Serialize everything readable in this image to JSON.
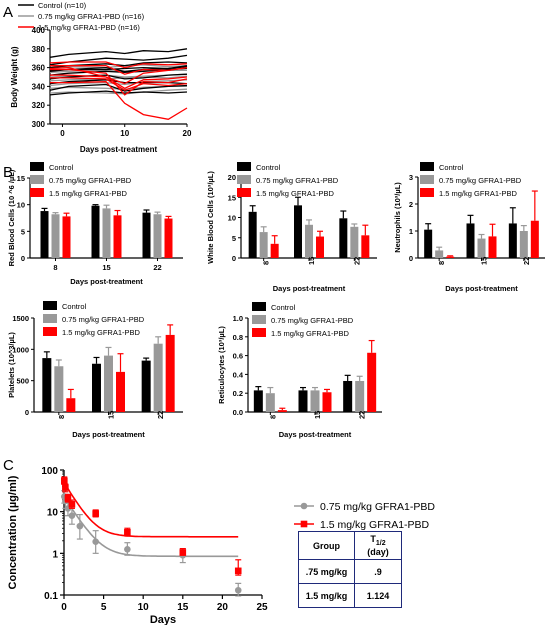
{
  "panel_labels": [
    "A",
    "B",
    "C"
  ],
  "colors": {
    "control": "#000000",
    "low": "#999999",
    "high": "#ff0000",
    "table_border": "#1f2a7a"
  },
  "chart_data": [
    {
      "id": "A",
      "type": "line",
      "ylabel": "Body Weight (g)",
      "xlabel": "Days post-treatment",
      "xlim": [
        -2,
        20
      ],
      "ylim": [
        300,
        400
      ],
      "xticks": [
        0,
        10,
        20
      ],
      "yticks": [
        300,
        320,
        340,
        360,
        380,
        400
      ],
      "legend": [
        "Control (n=10)",
        "0.75 mg/kg GFRA1-PBD (n=16)",
        "1.5 mg/kg GFRA1-PBD (n=16)"
      ],
      "x": [
        -2,
        1,
        7,
        10,
        13,
        17,
        20
      ],
      "series": [
        {
          "group": "control",
          "values": [
            371,
            374,
            377,
            375,
            378,
            377,
            380
          ]
        },
        {
          "group": "control",
          "values": [
            363,
            366,
            370,
            369,
            368,
            370,
            373
          ]
        },
        {
          "group": "control",
          "values": [
            360,
            362,
            364,
            362,
            365,
            366,
            365
          ]
        },
        {
          "group": "control",
          "values": [
            357,
            358,
            358,
            359,
            360,
            359,
            362
          ]
        },
        {
          "group": "control",
          "values": [
            352,
            354,
            356,
            355,
            356,
            358,
            359
          ]
        },
        {
          "group": "control",
          "values": [
            348,
            350,
            352,
            348,
            349,
            352,
            353
          ]
        },
        {
          "group": "control",
          "values": [
            343,
            345,
            347,
            344,
            344,
            344,
            343
          ]
        },
        {
          "group": "control",
          "values": [
            336,
            340,
            342,
            335,
            338,
            340,
            341
          ]
        },
        {
          "group": "control",
          "values": [
            331,
            333,
            335,
            333,
            334,
            333,
            334
          ]
        },
        {
          "group": "control",
          "values": [
            356,
            358,
            360,
            356,
            358,
            359,
            361
          ]
        },
        {
          "group": "low",
          "values": [
            360,
            361,
            360,
            362,
            363,
            361,
            362
          ]
        },
        {
          "group": "low",
          "values": [
            355,
            356,
            357,
            356,
            357,
            357,
            357
          ]
        },
        {
          "group": "low",
          "values": [
            350,
            351,
            352,
            350,
            351,
            352,
            353
          ]
        },
        {
          "group": "low",
          "values": [
            346,
            347,
            348,
            349,
            350,
            349,
            351
          ]
        },
        {
          "group": "low",
          "values": [
            341,
            343,
            344,
            342,
            345,
            346,
            347
          ]
        },
        {
          "group": "low",
          "values": [
            338,
            339,
            338,
            337,
            339,
            340,
            340
          ]
        },
        {
          "group": "low",
          "values": [
            333,
            334,
            333,
            332,
            334,
            336,
            337
          ]
        },
        {
          "group": "high",
          "values": [
            365,
            366,
            366,
            360,
            364,
            363,
            364
          ]
        },
        {
          "group": "high",
          "values": [
            362,
            362,
            362,
            353,
            358,
            357,
            360
          ]
        },
        {
          "group": "high",
          "values": [
            358,
            358,
            354,
            331,
            345,
            344,
            348
          ]
        },
        {
          "group": "high",
          "values": [
            352,
            352,
            350,
            338,
            347,
            348,
            350
          ]
        },
        {
          "group": "high",
          "values": [
            349,
            349,
            348,
            336,
            343,
            341,
            343
          ]
        },
        {
          "group": "high",
          "values": [
            344,
            344,
            345,
            322,
            310,
            305,
            317
          ]
        },
        {
          "group": "high",
          "values": [
            359,
            360,
            350,
            343,
            354,
            357,
            360
          ]
        }
      ]
    },
    {
      "id": "B1",
      "type": "bar",
      "ylabel": "Red Blood Cells (10 ^6 /µL)",
      "xlabel": "Days post-treatment",
      "categories": [
        "8",
        "15",
        "22"
      ],
      "ylim": [
        0,
        15
      ],
      "yticks": [
        0,
        5,
        10,
        15
      ],
      "legend": [
        "Control",
        "0.75 mg/kg GFRA1-PBD",
        "1.5 mg/kg GFRA1-PBD"
      ],
      "series": [
        {
          "group": "control",
          "values": [
            8.8,
            9.8,
            8.5
          ],
          "errors": [
            0.5,
            0.2,
            0.5
          ]
        },
        {
          "group": "low",
          "values": [
            8.2,
            9.3,
            8.2
          ],
          "errors": [
            0.3,
            0.6,
            0.4
          ]
        },
        {
          "group": "high",
          "values": [
            7.8,
            8.0,
            7.4
          ],
          "errors": [
            0.6,
            0.9,
            0.4
          ]
        }
      ]
    },
    {
      "id": "B2",
      "type": "bar",
      "ylabel": "White Blood Cells (10³/µL)",
      "xlabel": "Days post-treatment",
      "categories": [
        "8",
        "15",
        "22"
      ],
      "ylim": [
        0,
        20
      ],
      "yticks": [
        0,
        5,
        10,
        15,
        20
      ],
      "legend": [
        "Control",
        "0.75 mg/kg GFRA1-PBD",
        "1.5 mg/kg GFRA1-PBD"
      ],
      "series": [
        {
          "group": "control",
          "values": [
            11.4,
            13.0,
            9.8
          ],
          "errors": [
            1.5,
            2.0,
            1.8
          ]
        },
        {
          "group": "low",
          "values": [
            6.4,
            8.2,
            7.7
          ],
          "errors": [
            1.3,
            1.2,
            0.7
          ]
        },
        {
          "group": "high",
          "values": [
            3.5,
            5.3,
            5.6
          ],
          "errors": [
            2.0,
            1.3,
            2.5
          ]
        }
      ]
    },
    {
      "id": "B3",
      "type": "bar",
      "ylabel": "Neutrophils (10³/µL)",
      "xlabel": "Days post-treatment",
      "categories": [
        "8",
        "15",
        "22"
      ],
      "ylim": [
        0,
        3
      ],
      "yticks": [
        0,
        1,
        2,
        3
      ],
      "legend": [
        "Control",
        "0.75 mg/kg GFRA1-PBD",
        "1.5 mg/kg GFRA1-PBD"
      ],
      "series": [
        {
          "group": "control",
          "values": [
            1.05,
            1.28,
            1.28
          ],
          "errors": [
            0.22,
            0.3,
            0.58
          ]
        },
        {
          "group": "low",
          "values": [
            0.28,
            0.72,
            1.0
          ],
          "errors": [
            0.12,
            0.15,
            0.2
          ]
        },
        {
          "group": "high",
          "values": [
            0.05,
            0.8,
            1.38
          ],
          "errors": [
            0.03,
            0.45,
            1.1
          ]
        }
      ]
    },
    {
      "id": "B4",
      "type": "bar",
      "ylabel": "Platelets (10^3/µL)",
      "xlabel": "Days post-treatment",
      "categories": [
        "8",
        "15",
        "22"
      ],
      "ylim": [
        0,
        1500
      ],
      "yticks": [
        0,
        500,
        1000,
        1500
      ],
      "legend": [
        "Control",
        "0.75 mg/kg GFRA1-PBD",
        "1.5 mg/kg GFRA1-PBD"
      ],
      "series": [
        {
          "group": "control",
          "values": [
            860,
            770,
            820
          ],
          "errors": [
            100,
            100,
            40
          ]
        },
        {
          "group": "low",
          "values": [
            730,
            900,
            1090
          ],
          "errors": [
            100,
            130,
            110
          ]
        },
        {
          "group": "high",
          "values": [
            220,
            640,
            1230
          ],
          "errors": [
            140,
            290,
            160
          ]
        }
      ]
    },
    {
      "id": "B5",
      "type": "bar",
      "ylabel": "Reticulocytes (10³/µL)",
      "xlabel": "Days post-treatment",
      "categories": [
        "8",
        "15",
        "22"
      ],
      "ylim": [
        0,
        1.0
      ],
      "yticks": [
        0.0,
        0.2,
        0.4,
        0.6,
        0.8,
        1.0
      ],
      "legend": [
        "Control",
        "0.75 mg/kg GFRA1-PBD",
        "1.5 mg/kg GFRA1-PBD"
      ],
      "series": [
        {
          "group": "control",
          "values": [
            0.23,
            0.23,
            0.33
          ],
          "errors": [
            0.04,
            0.03,
            0.06
          ]
        },
        {
          "group": "low",
          "values": [
            0.2,
            0.23,
            0.33
          ],
          "errors": [
            0.06,
            0.03,
            0.05
          ]
        },
        {
          "group": "high",
          "values": [
            0.02,
            0.21,
            0.63
          ],
          "errors": [
            0.02,
            0.03,
            0.13
          ]
        }
      ]
    },
    {
      "id": "C",
      "type": "scatter",
      "yscale": "log",
      "ylabel": "Concentration (µg/ml)",
      "xlabel": "Days",
      "xlim": [
        0,
        25
      ],
      "ylim": [
        0.1,
        100
      ],
      "xticks": [
        0,
        5,
        10,
        15,
        20,
        25
      ],
      "yticks": [
        0.1,
        1,
        10,
        100
      ],
      "legend": [
        "0.75 mg/kg GFRA1-PBD",
        "1.5 mg/kg GFRA1-PBD"
      ],
      "series": [
        {
          "group": "low",
          "x": [
            0.04,
            0.17,
            0.5,
            1,
            2,
            4,
            8,
            15,
            22
          ],
          "y": [
            23,
            18,
            12,
            8,
            4.5,
            1.9,
            1.25,
            0.9,
            0.13
          ],
          "err_low": [
            16,
            12,
            8,
            5,
            2.2,
            1.0,
            0.9,
            0.6,
            0.095
          ],
          "err_high": [
            32,
            26,
            18,
            12,
            8.5,
            3.5,
            1.8,
            1.3,
            0.19
          ],
          "fit": {
            "C_inf": 0.85,
            "A": 22,
            "k": 0.7
          }
        },
        {
          "group": "high",
          "x": [
            0.04,
            0.17,
            0.5,
            1,
            4,
            8,
            15,
            22
          ],
          "y": [
            55,
            38,
            21,
            15,
            9,
            3.2,
            1.05,
            0.38
          ],
          "err_low": [
            45,
            30,
            17,
            12,
            7.5,
            2.6,
            0.9,
            0.3
          ],
          "err_high": [
            68,
            46,
            26,
            19,
            11,
            4.0,
            1.3,
            0.7
          ],
          "fit": {
            "C_inf": 2.5,
            "A": 48,
            "k": 0.75
          }
        }
      ]
    }
  ],
  "table": {
    "header": [
      "Group",
      "T1/2 (day)"
    ],
    "header_t": "T",
    "header_sub": "1/2",
    "header_unit": "(day)",
    "rows": [
      [
        ".75 mg/kg",
        ".9"
      ],
      [
        "1.5 mg/kg",
        "1.124"
      ]
    ]
  }
}
